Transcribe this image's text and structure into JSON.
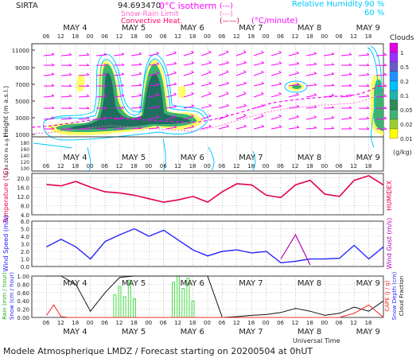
{
  "header": {
    "site": "SIRTA",
    "coords": "94.693470",
    "legend_isotherm": "0°C isotherm",
    "legend_snow_rain": "Snow-Rain Limit",
    "legend_conv_heat": "Convective Heat.",
    "legend_conv_unit": "(°C/minute)",
    "legend_rh": "Relative Humidity",
    "rh_90": "90 %",
    "rh_60": "60 %",
    "clouds_label": "Clouds",
    "clouds_unit": "(g/kg)"
  },
  "axis": {
    "hours": [
      "06",
      "12",
      "18",
      "00",
      "06",
      "12",
      "18",
      "00",
      "06",
      "12",
      "18",
      "00",
      "06",
      "12",
      "18",
      "00",
      "06",
      "12",
      "18",
      "00",
      "06",
      "12",
      "18"
    ],
    "days": [
      "MAY  4",
      "MAY  5",
      "MAY  6",
      "MAY  7",
      "MAY  8",
      "MAY  9"
    ],
    "universal_time": "Universal Time"
  },
  "panel_height": {
    "ylabel": "Height  (m a.s.l.)",
    "ylabel2": "Up to 200 m a.g.l.",
    "yticks_top": [
      "11000",
      "9000",
      "7000",
      "5000",
      "3000",
      "1000"
    ],
    "yticks_bottom": [
      "180",
      "160",
      "140",
      "120",
      "100"
    ],
    "colorbar": [
      "1",
      "0.5",
      "0.2",
      "0.1",
      "0.05",
      "0.02",
      "0.01"
    ],
    "colorbar_colors": [
      "#e000e0",
      "#9b30ff",
      "#6a5acd",
      "#1e90ff",
      "#00bfff",
      "#20b2aa",
      "#2e8b57",
      "#3cb371",
      "#9acd32",
      "#ffff00"
    ]
  },
  "chart_data": [
    {
      "type": "line",
      "title": "Temperature",
      "ylabel": "Temperature (°C)",
      "ylabel2": "HUMIDEX",
      "yticks": [
        "20.0",
        "16.0",
        "12.0",
        "8.0",
        "4.0"
      ],
      "ylim": [
        4,
        22
      ],
      "x_hours": [
        0,
        6,
        12,
        18,
        24,
        30,
        36,
        42,
        48,
        54,
        60,
        66,
        72,
        78,
        84,
        90,
        96,
        102,
        108,
        114,
        120,
        126,
        132,
        138
      ],
      "series": [
        {
          "values": [
            17.2,
            16.6,
            18.5,
            16.0,
            14.0,
            13.5,
            12.5,
            11.0,
            9.5,
            10.5,
            12.0,
            9.5,
            14.0,
            17.5,
            17.0,
            12.5,
            11.5,
            17.0,
            19.0,
            13.0,
            12.0,
            19.0,
            21.0,
            17.0
          ]
        }
      ]
    },
    {
      "type": "line",
      "title": "Wind",
      "ylabel": "Wind Speed (m/s)",
      "ylabel2": "Wind Gust (m/s)",
      "yticks": [
        "6.0",
        "5.0",
        "4.0",
        "3.0",
        "2.0",
        "1.0",
        "0.0"
      ],
      "ylim": [
        0,
        6
      ],
      "x_hours": [
        0,
        6,
        12,
        18,
        24,
        30,
        36,
        42,
        48,
        54,
        60,
        66,
        72,
        78,
        84,
        90,
        96,
        102,
        108,
        114,
        120,
        126,
        132,
        138
      ],
      "series": [
        {
          "values": [
            2.6,
            3.6,
            2.6,
            1.0,
            3.3,
            4.2,
            5.0,
            4.0,
            4.8,
            3.5,
            2.2,
            1.4,
            2.0,
            2.2,
            1.8,
            2.0,
            0.5,
            0.7,
            1.0,
            1.0,
            1.1,
            2.8,
            1.0,
            2.6
          ]
        },
        {
          "values": [
            null,
            null,
            null,
            null,
            null,
            null,
            null,
            null,
            null,
            null,
            null,
            null,
            null,
            null,
            null,
            null,
            1.0,
            4.2,
            0.2,
            null,
            null,
            null,
            null,
            null
          ]
        }
      ]
    },
    {
      "type": "bar",
      "title": "Rain / Snow / Cloud",
      "ylabel": "Rain (mm / hour)",
      "ylabel_b": "Snow (cm / hour)",
      "ylabel2": "CAPE (J / g)",
      "ylabel2_b": "Snow Depth (cm)",
      "ylabel2_c": "Cloud Fraction",
      "yticks": [
        "1.00",
        "0.80",
        "0.60",
        "0.40",
        "0.20",
        "0.00"
      ],
      "ylim": [
        0,
        1
      ],
      "rain_hours": [
        28,
        30,
        32,
        34,
        36,
        52,
        54,
        56,
        58,
        60
      ],
      "rain_values": [
        0.55,
        0.75,
        0.5,
        0.9,
        0.45,
        0.85,
        1.0,
        0.7,
        0.95,
        0.4
      ],
      "cloud_x": [
        0,
        6,
        12,
        18,
        24,
        30,
        36,
        42,
        48,
        54,
        60,
        66,
        72,
        78,
        84,
        90,
        96,
        102,
        108,
        114,
        120,
        126,
        132,
        138
      ],
      "cloud_values": [
        1.0,
        1.0,
        0.8,
        0.15,
        0.6,
        0.97,
        1.0,
        1.0,
        1.0,
        1.0,
        1.0,
        1.0,
        0.0,
        0.02,
        0.05,
        0.07,
        0.12,
        0.22,
        0.15,
        0.05,
        0.1,
        0.25,
        0.15,
        0.4
      ],
      "cape_x": [
        0,
        3,
        6,
        9,
        120,
        126,
        132,
        138
      ],
      "cape_values": [
        0.05,
        0.3,
        0.02,
        0.0,
        0.0,
        0.1,
        0.3,
        0.0
      ]
    }
  ],
  "footer": {
    "text": "Modele Atmospherique LMDZ / Forecast starting on 20200504 at 0hUT"
  }
}
